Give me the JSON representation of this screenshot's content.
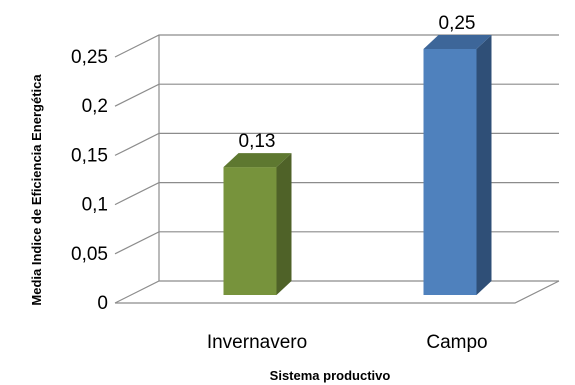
{
  "chart_data": {
    "type": "bar",
    "style": "3d-column",
    "categories": [
      "Invernavero",
      "Campo"
    ],
    "values": [
      0.13,
      0.25
    ],
    "data_labels": [
      "0,13",
      "0,25"
    ],
    "colors": [
      "#77933C",
      "#4F81BD"
    ],
    "side_colors": [
      "#4F6228",
      "#2F4F77"
    ],
    "top_colors": [
      "#5E7830",
      "#3D6699"
    ],
    "xlabel": "Sistema productivo",
    "ylabel": "Media Indice de Eficiencia Energética",
    "ylim": [
      0,
      0.25
    ],
    "yticks": [
      0,
      0.05,
      0.1,
      0.15,
      0.2,
      0.25
    ],
    "ytick_labels": [
      "0",
      "0,05",
      "0,1",
      "0,15",
      "0,2",
      "0,25"
    ],
    "grid": true
  }
}
